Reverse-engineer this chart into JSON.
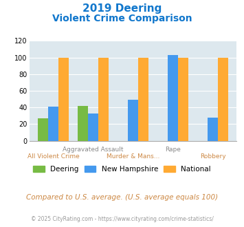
{
  "title_line1": "2019 Deering",
  "title_line2": "Violent Crime Comparison",
  "deering": [
    27,
    42,
    0,
    0,
    0
  ],
  "new_hampshire": [
    41,
    33,
    49,
    103,
    28
  ],
  "national": [
    100,
    100,
    100,
    100,
    100
  ],
  "deering_color": "#77bb44",
  "nh_color": "#4499ee",
  "national_color": "#ffaa33",
  "bg_color": "#dde8ee",
  "ylim": [
    0,
    120
  ],
  "yticks": [
    0,
    20,
    40,
    60,
    80,
    100,
    120
  ],
  "title_color": "#1177cc",
  "xlabel_top": [
    "",
    "Aggravated Assault",
    "",
    "Rape",
    ""
  ],
  "xlabel_bot": [
    "All Violent Crime",
    "",
    "Murder & Mans...",
    "",
    "Robbery"
  ],
  "xlabel_top_color": "#888888",
  "xlabel_bot_color": "#cc8844",
  "footer_text": "Compared to U.S. average. (U.S. average equals 100)",
  "credit_text": "© 2025 CityRating.com - https://www.cityrating.com/crime-statistics/",
  "legend_labels": [
    "Deering",
    "New Hampshire",
    "National"
  ]
}
